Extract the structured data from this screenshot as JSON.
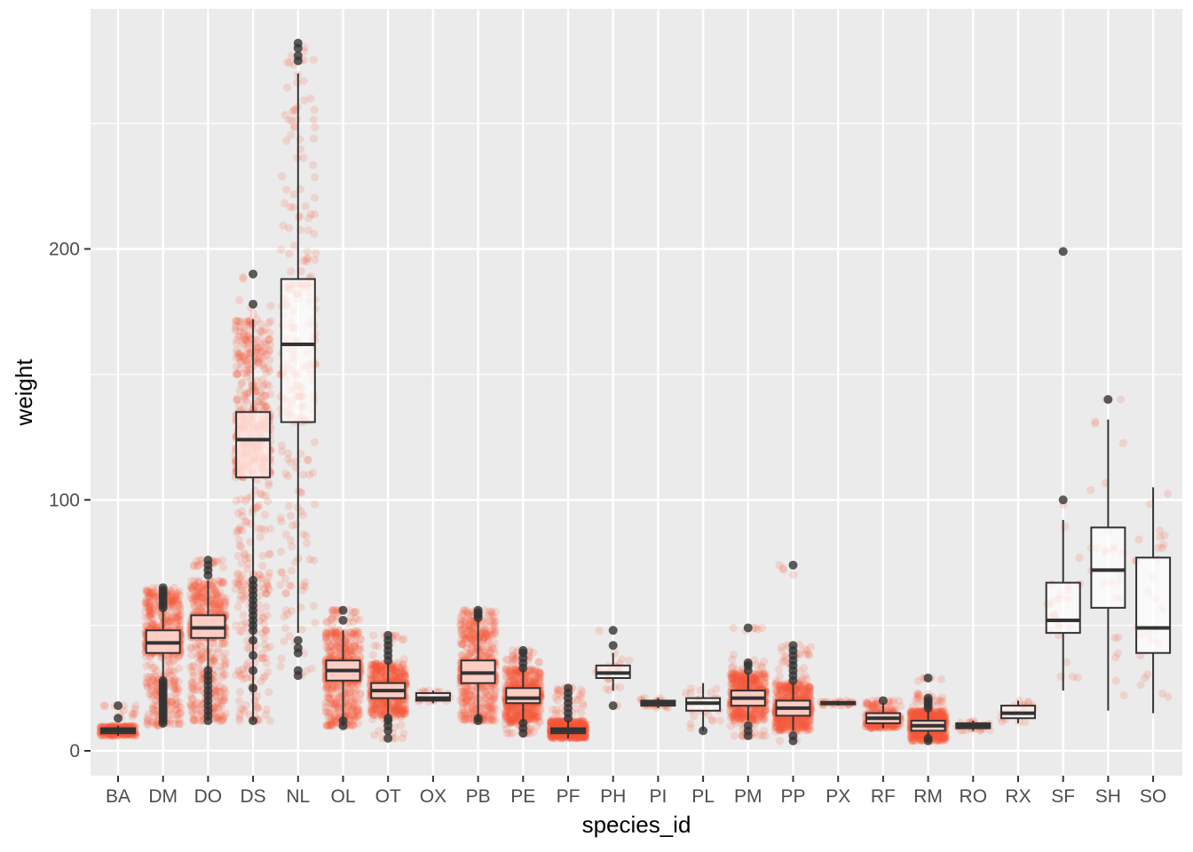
{
  "chart_data": {
    "type": "boxplot",
    "xlabel": "species_id",
    "ylabel": "weight",
    "ylim": [
      -10,
      283
    ],
    "yticks": [
      0,
      100,
      200
    ],
    "grid": true,
    "legend": "none",
    "colors": {
      "panel": "#EBEBEB",
      "gridline": "#FFFFFF",
      "jitter": "#F8563A",
      "box_fill": "#FFFFFF",
      "box_line": "#333333",
      "outlier": "#333333"
    },
    "categories": [
      "BA",
      "DM",
      "DO",
      "DS",
      "NL",
      "OL",
      "OT",
      "OX",
      "PB",
      "PE",
      "PF",
      "PH",
      "PI",
      "PL",
      "PM",
      "PP",
      "PX",
      "RF",
      "RM",
      "RO",
      "RX",
      "SF",
      "SH",
      "SO"
    ],
    "boxes": [
      {
        "species": "BA",
        "min": 6,
        "q1": 7,
        "median": 8,
        "q3": 9,
        "max": 10,
        "outliers": [
          13,
          18
        ],
        "jitter_density": "medium"
      },
      {
        "species": "DM",
        "min": 10,
        "q1": 39,
        "median": 43,
        "q3": 48,
        "max": 64,
        "outliers": [
          11,
          12,
          13,
          14,
          15,
          16,
          17,
          18,
          19,
          20,
          21,
          22,
          23,
          24,
          25,
          26,
          27,
          28,
          57,
          58,
          59,
          60,
          61,
          62,
          63,
          64,
          65
        ],
        "jitter_density": "high"
      },
      {
        "species": "DO",
        "min": 12,
        "q1": 45,
        "median": 49,
        "q3": 54,
        "max": 68,
        "outliers": [
          12,
          14,
          16,
          18,
          20,
          22,
          24,
          26,
          28,
          30,
          32,
          70,
          72,
          74,
          76
        ],
        "jitter_density": "high"
      },
      {
        "species": "DS",
        "min": 12,
        "q1": 109,
        "median": 124,
        "q3": 135,
        "max": 172,
        "outliers": [
          12,
          25,
          32,
          38,
          44,
          48,
          50,
          52,
          54,
          56,
          58,
          60,
          62,
          64,
          66,
          68,
          178,
          190
        ],
        "jitter_density": "high"
      },
      {
        "species": "NL",
        "min": 47,
        "q1": 131,
        "median": 162,
        "q3": 188,
        "max": 270,
        "outliers": [
          30,
          32,
          39,
          41,
          44,
          275,
          277,
          280,
          282
        ],
        "jitter_density": "medium"
      },
      {
        "species": "OL",
        "min": 10,
        "q1": 28,
        "median": 32,
        "q3": 36,
        "max": 48,
        "outliers": [
          10,
          12,
          52,
          56
        ],
        "jitter_density": "high"
      },
      {
        "species": "OT",
        "min": 14,
        "q1": 21,
        "median": 24,
        "q3": 27,
        "max": 35,
        "outliers": [
          5,
          8,
          10,
          12,
          13,
          36,
          38,
          40,
          42,
          44,
          46
        ],
        "jitter_density": "high"
      },
      {
        "species": "OX",
        "min": 19,
        "q1": 20,
        "median": 21,
        "q3": 23,
        "max": 24,
        "outliers": [],
        "jitter_density": "low"
      },
      {
        "species": "PB",
        "min": 12,
        "q1": 27,
        "median": 31,
        "q3": 36,
        "max": 52,
        "outliers": [
          12,
          13,
          53,
          54,
          55,
          56
        ],
        "jitter_density": "high"
      },
      {
        "species": "PE",
        "min": 11,
        "q1": 19,
        "median": 21,
        "q3": 25,
        "max": 33,
        "outliers": [
          7,
          9,
          11,
          33,
          35,
          37,
          39,
          40
        ],
        "jitter_density": "high"
      },
      {
        "species": "PF",
        "min": 5,
        "q1": 7,
        "median": 8,
        "q3": 9,
        "max": 12,
        "outliers": [
          13,
          15,
          17,
          19,
          21,
          23,
          25
        ],
        "jitter_density": "high"
      },
      {
        "species": "PH",
        "min": 24,
        "q1": 29,
        "median": 31,
        "q3": 34,
        "max": 39,
        "outliers": [
          18,
          42,
          48
        ],
        "jitter_density": "low"
      },
      {
        "species": "PI",
        "min": 17,
        "q1": 18,
        "median": 19,
        "q3": 20,
        "max": 21,
        "outliers": [],
        "jitter_density": "low"
      },
      {
        "species": "PL",
        "min": 8,
        "q1": 16,
        "median": 19,
        "q3": 21,
        "max": 27,
        "outliers": [
          8
        ],
        "jitter_density": "low"
      },
      {
        "species": "PM",
        "min": 12,
        "q1": 18,
        "median": 21,
        "q3": 24,
        "max": 31,
        "outliers": [
          6,
          8,
          10,
          32,
          34,
          35,
          49
        ],
        "jitter_density": "high"
      },
      {
        "species": "PP",
        "min": 8,
        "q1": 14,
        "median": 17,
        "q3": 20,
        "max": 27,
        "outliers": [
          4,
          6,
          28,
          30,
          32,
          34,
          36,
          38,
          40,
          42,
          74
        ],
        "jitter_density": "high"
      },
      {
        "species": "PX",
        "min": 18,
        "q1": 18.5,
        "median": 19,
        "q3": 19.5,
        "max": 20,
        "outliers": [],
        "jitter_density": "low"
      },
      {
        "species": "RF",
        "min": 9,
        "q1": 11,
        "median": 13,
        "q3": 15,
        "max": 19,
        "outliers": [
          20
        ],
        "jitter_density": "medium"
      },
      {
        "species": "RM",
        "min": 4,
        "q1": 8,
        "median": 10,
        "q3": 12,
        "max": 16,
        "outliers": [
          4,
          5,
          17,
          18,
          19,
          20,
          21,
          29
        ],
        "jitter_density": "high"
      },
      {
        "species": "RO",
        "min": 8,
        "q1": 9,
        "median": 10,
        "q3": 11,
        "max": 12,
        "outliers": [],
        "jitter_density": "low"
      },
      {
        "species": "RX",
        "min": 11,
        "q1": 13,
        "median": 15,
        "q3": 18,
        "max": 20,
        "outliers": [],
        "jitter_density": "low"
      },
      {
        "species": "SF",
        "min": 24,
        "q1": 47,
        "median": 52,
        "q3": 67,
        "max": 92,
        "outliers": [
          100,
          199
        ],
        "jitter_density": "low"
      },
      {
        "species": "SH",
        "min": 16,
        "q1": 57,
        "median": 72,
        "q3": 89,
        "max": 132,
        "outliers": [
          140
        ],
        "jitter_density": "low"
      },
      {
        "species": "SO",
        "min": 15,
        "q1": 39,
        "median": 49,
        "q3": 77,
        "max": 105,
        "outliers": [],
        "jitter_density": "low"
      }
    ]
  }
}
